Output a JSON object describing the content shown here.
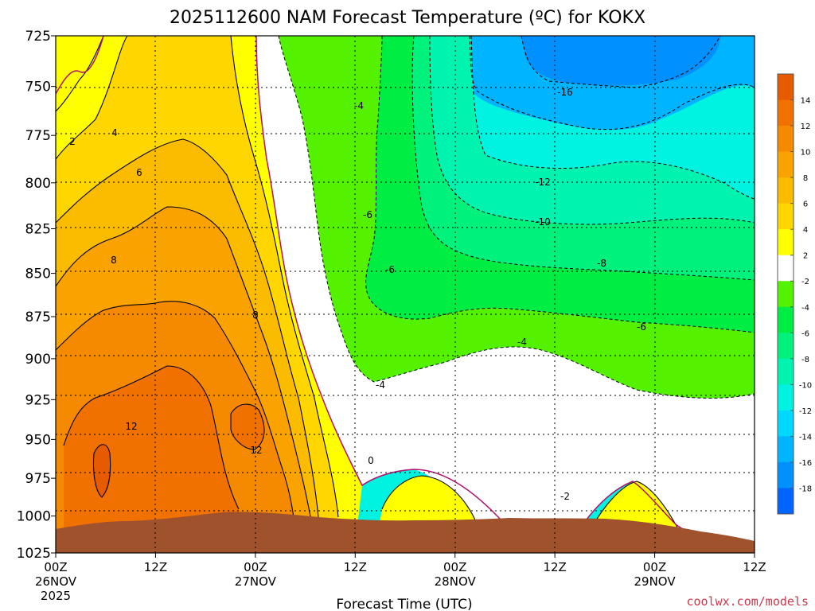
{
  "chart_data": {
    "type": "heatmap",
    "title": "2025112600 NAM Forecast Temperature (ºC) for KOKX",
    "xlabel": "Forecast Time (UTC)",
    "ylabel": "",
    "credit": "coolwx.com/models",
    "y_ticks": [
      "725",
      "750",
      "775",
      "800",
      "825",
      "850",
      "875",
      "900",
      "925",
      "950",
      "975",
      "1000",
      "1025"
    ],
    "x_ticks": [
      {
        "time": "00Z",
        "date": "26NOV",
        "year": "2025"
      },
      {
        "time": "12Z",
        "date": "",
        "year": ""
      },
      {
        "time": "00Z",
        "date": "27NOV",
        "year": ""
      },
      {
        "time": "12Z",
        "date": "",
        "year": ""
      },
      {
        "time": "00Z",
        "date": "28NOV",
        "year": ""
      },
      {
        "time": "12Z",
        "date": "",
        "year": ""
      },
      {
        "time": "00Z",
        "date": "29NOV",
        "year": ""
      },
      {
        "time": "12Z",
        "date": "",
        "year": ""
      }
    ],
    "ylim": [
      725,
      1025
    ],
    "x_range_hours": [
      0,
      84
    ],
    "colorbar": {
      "labels": [
        "14",
        "12",
        "10",
        "8",
        "6",
        "4",
        "2",
        "-2",
        "-4",
        "-6",
        "-8",
        "-10",
        "-12",
        "-14",
        "-16",
        "-18"
      ],
      "colors": [
        "#e65a00",
        "#f07000",
        "#f58a00",
        "#f9a200",
        "#fbbc00",
        "#ffd600",
        "#ffff00",
        "#ffffff",
        "#54f200",
        "#00ee44",
        "#00f27c",
        "#00f4b0",
        "#00f2e0",
        "#00d8ff",
        "#00b4ff",
        "#0090ff",
        "#0064ff"
      ]
    },
    "contour_labels": [
      "2",
      "4",
      "6",
      "8",
      "8",
      "12",
      "12",
      "-4",
      "-6",
      "-6",
      "-4",
      "-4",
      "-16",
      "-12",
      "-10",
      "-8",
      "-6",
      "0",
      "-2"
    ]
  }
}
